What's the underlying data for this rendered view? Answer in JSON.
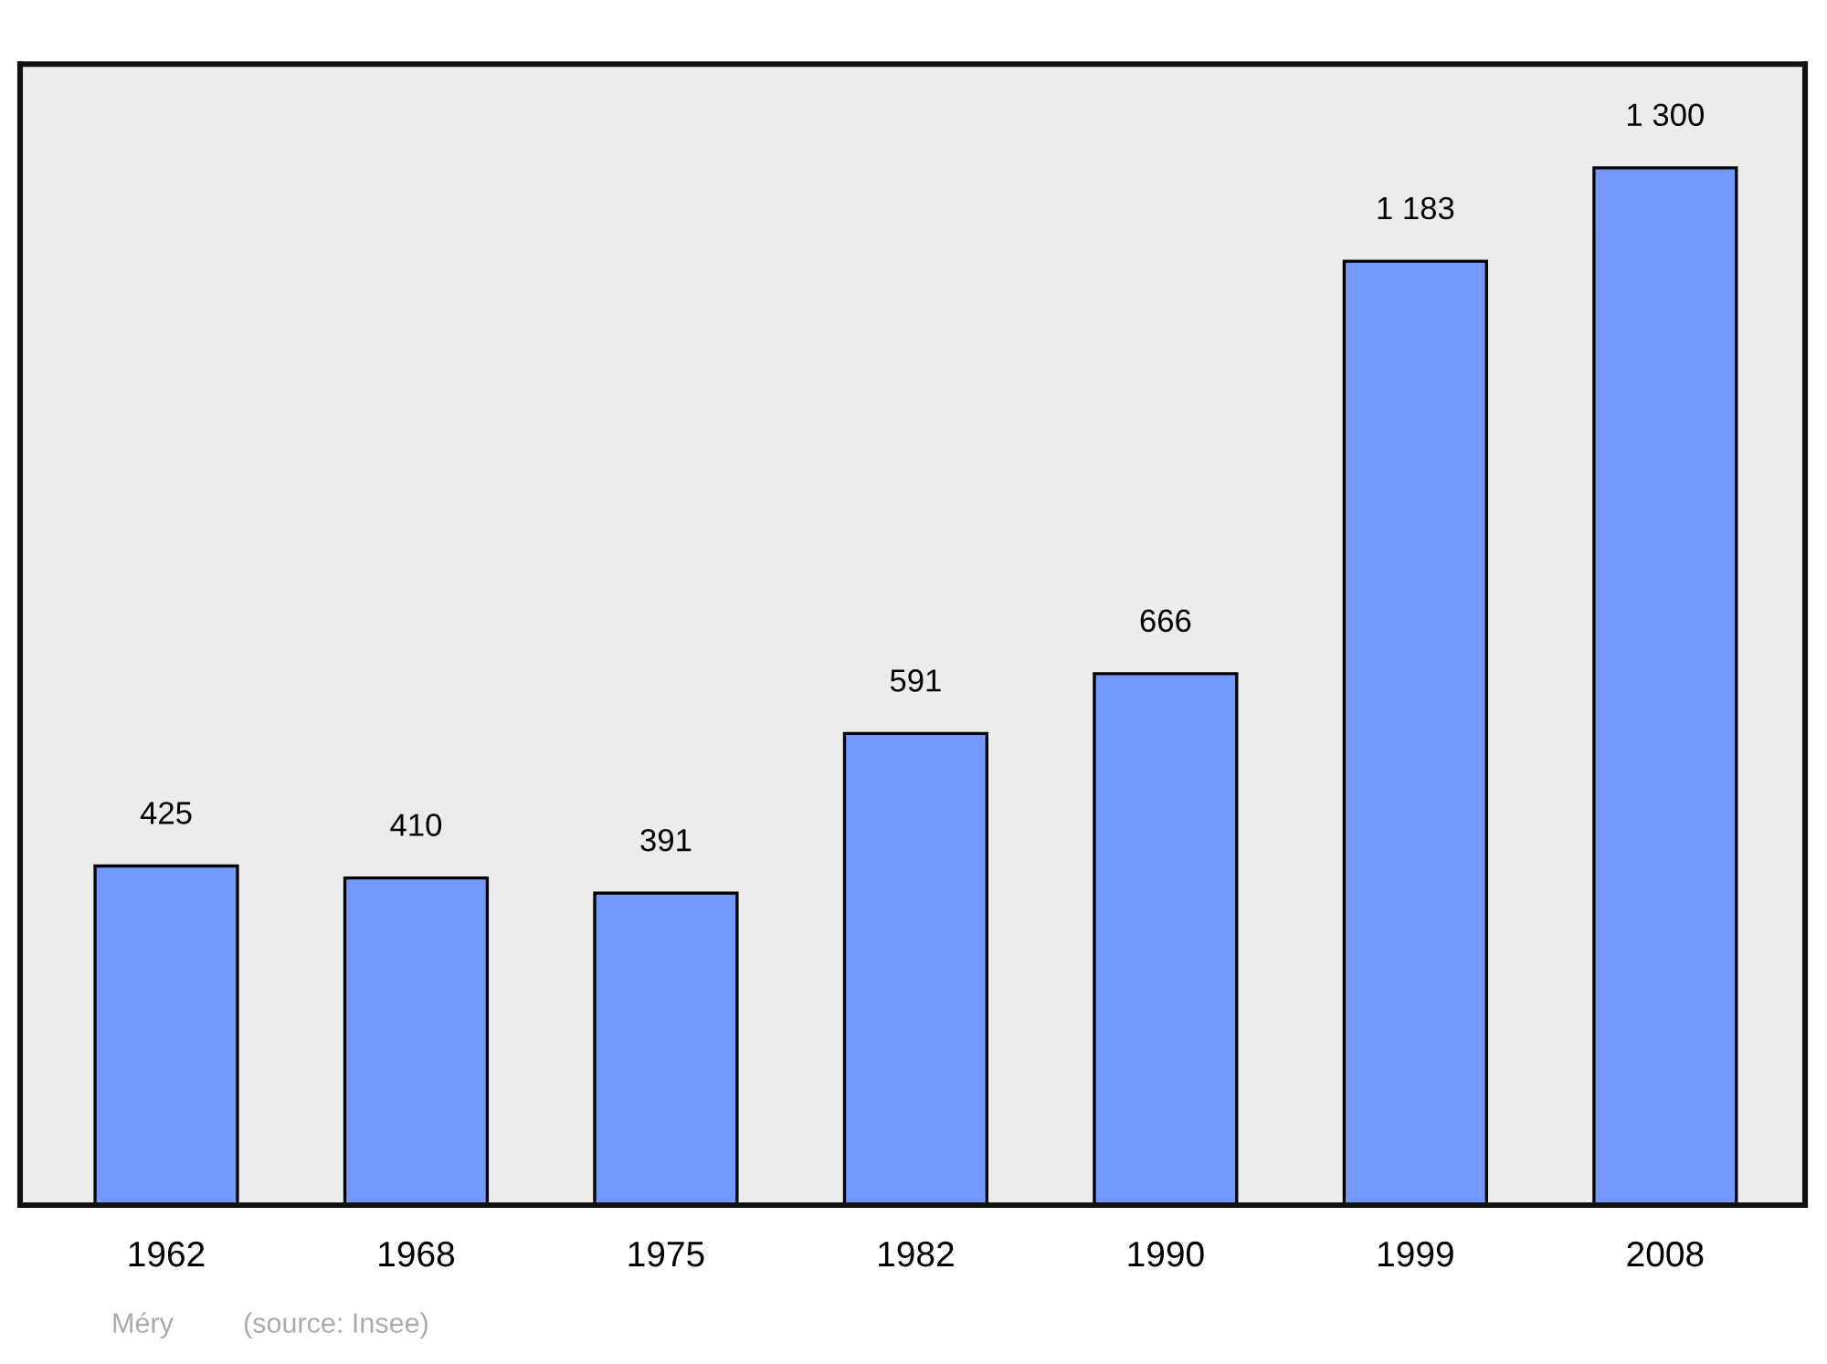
{
  "chart_data": {
    "type": "bar",
    "categories": [
      "1962",
      "1968",
      "1975",
      "1982",
      "1990",
      "1999",
      "2008"
    ],
    "values": [
      425,
      410,
      391,
      591,
      666,
      1183,
      1300
    ],
    "value_labels": [
      "425",
      "410",
      "391",
      "591",
      "666",
      "1 183",
      "1 300"
    ],
    "color": "#7399ff",
    "ylim": [
      0,
      1430
    ],
    "tick_labels": "x",
    "grid": false,
    "legend": false,
    "annotations": [
      "Méry",
      "(source: Insee)"
    ]
  }
}
